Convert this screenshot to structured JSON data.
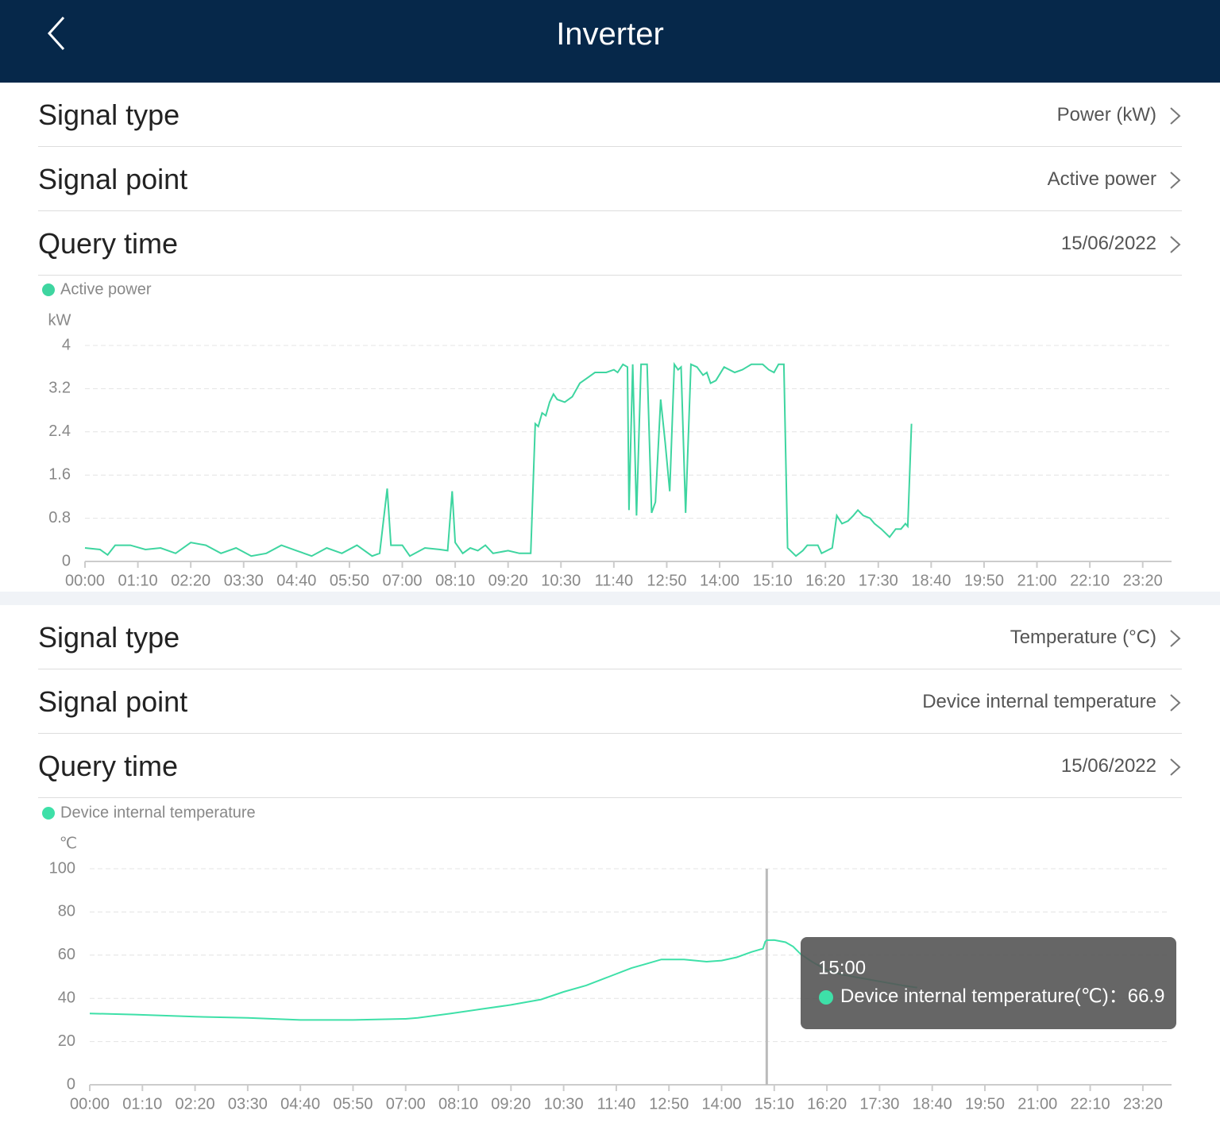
{
  "header": {
    "title": "Inverter"
  },
  "sections": [
    {
      "rows": [
        {
          "label": "Signal type",
          "value": "Power (kW)"
        },
        {
          "label": "Signal point",
          "value": "Active power"
        },
        {
          "label": "Query time",
          "value": "15/06/2022"
        }
      ]
    },
    {
      "rows": [
        {
          "label": "Signal type",
          "value": "Temperature (°C)"
        },
        {
          "label": "Signal point",
          "value": "Device internal temperature"
        },
        {
          "label": "Query time",
          "value": "15/06/2022"
        }
      ]
    }
  ],
  "chart_data": [
    {
      "type": "line",
      "y_label": "kW",
      "x": [
        0,
        20,
        30,
        40,
        60,
        80,
        100,
        120,
        140,
        160,
        180,
        200,
        220,
        240,
        260,
        280,
        300,
        320,
        340,
        360,
        380,
        390,
        400,
        405,
        420,
        430,
        450,
        470,
        480,
        486,
        490,
        500,
        510,
        520,
        530,
        540,
        560,
        575,
        590,
        596,
        600,
        605,
        610,
        615,
        620,
        625,
        635,
        645,
        655,
        665,
        675,
        690,
        700,
        705,
        712,
        718,
        720,
        725,
        730,
        736,
        744,
        750,
        755,
        762,
        768,
        774,
        780,
        785,
        789,
        795,
        802,
        810,
        818,
        823,
        828,
        835,
        846,
        860,
        870,
        876,
        882,
        897,
        905,
        912,
        918,
        925,
        930,
        941,
        950,
        956,
        970,
        975,
        989,
        995,
        1002,
        1010,
        1017,
        1023,
        1030,
        1039,
        1045,
        1054,
        1065,
        1073,
        1080,
        1086,
        1089,
        1094
      ],
      "series": [
        {
          "name": "Active power",
          "color": "#3ed5a0",
          "values": [
            0.25,
            0.22,
            0.12,
            0.3,
            0.3,
            0.22,
            0.25,
            0.15,
            0.35,
            0.3,
            0.15,
            0.25,
            0.1,
            0.15,
            0.3,
            0.2,
            0.1,
            0.25,
            0.15,
            0.3,
            0.1,
            0.15,
            1.35,
            0.3,
            0.3,
            0.1,
            0.25,
            0.22,
            0.2,
            1.3,
            0.35,
            0.15,
            0.25,
            0.2,
            0.3,
            0.15,
            0.2,
            0.15,
            0.15,
            2.55,
            2.5,
            2.75,
            2.7,
            2.95,
            3.1,
            3.0,
            2.95,
            3.05,
            3.3,
            3.4,
            3.5,
            3.5,
            3.55,
            3.5,
            3.65,
            3.6,
            0.95,
            3.65,
            0.85,
            3.65,
            3.65,
            0.9,
            1.1,
            3.0,
            2.2,
            1.3,
            3.65,
            3.55,
            3.6,
            0.9,
            3.65,
            3.6,
            3.45,
            3.5,
            3.3,
            3.35,
            3.6,
            3.5,
            3.55,
            3.6,
            3.65,
            3.65,
            3.55,
            3.5,
            3.65,
            3.65,
            0.25,
            0.1,
            0.2,
            0.3,
            0.3,
            0.15,
            0.25,
            0.85,
            0.7,
            0.75,
            0.85,
            0.95,
            0.85,
            0.8,
            0.7,
            0.6,
            0.45,
            0.6,
            0.6,
            0.7,
            0.65,
            2.55
          ]
        }
      ],
      "xlim": [
        0,
        1435
      ],
      "xticks": [
        {
          "value": 0,
          "label": "00:00"
        },
        {
          "value": 70,
          "label": "01:10"
        },
        {
          "value": 140,
          "label": "02:20"
        },
        {
          "value": 210,
          "label": "03:30"
        },
        {
          "value": 280,
          "label": "04:40"
        },
        {
          "value": 350,
          "label": "05:50"
        },
        {
          "value": 420,
          "label": "07:00"
        },
        {
          "value": 490,
          "label": "08:10"
        },
        {
          "value": 560,
          "label": "09:20"
        },
        {
          "value": 630,
          "label": "10:30"
        },
        {
          "value": 700,
          "label": "11:40"
        },
        {
          "value": 770,
          "label": "12:50"
        },
        {
          "value": 840,
          "label": "14:00"
        },
        {
          "value": 910,
          "label": "15:10"
        },
        {
          "value": 980,
          "label": "16:20"
        },
        {
          "value": 1050,
          "label": "17:30"
        },
        {
          "value": 1120,
          "label": "18:40"
        },
        {
          "value": 1190,
          "label": "19:50"
        },
        {
          "value": 1260,
          "label": "21:00"
        },
        {
          "value": 1330,
          "label": "22:10"
        },
        {
          "value": 1400,
          "label": "23:20"
        }
      ],
      "ylim": [
        0,
        4
      ],
      "yticks": [
        0,
        0.8,
        1.6,
        2.4,
        3.2,
        4
      ],
      "grid": true
    },
    {
      "type": "line",
      "y_label": "℃",
      "x": [
        0,
        60,
        140,
        210,
        280,
        350,
        420,
        436,
        480,
        520,
        560,
        600,
        630,
        660,
        690,
        720,
        740,
        760,
        790,
        820,
        840,
        860,
        880,
        895,
        898,
        900,
        910,
        925,
        935,
        945,
        960,
        980,
        1000,
        1040,
        1080,
        1100
      ],
      "series": [
        {
          "name": "Device internal temperature",
          "color": "#3ee0a8",
          "values": [
            33,
            32.5,
            31.5,
            31,
            30,
            30,
            30.5,
            31,
            33,
            35,
            37,
            39.5,
            43,
            46,
            50,
            54,
            56,
            58,
            58,
            57,
            57.5,
            59,
            61.5,
            63,
            66.2,
            66.9,
            67,
            66,
            64,
            60.5,
            57,
            53,
            51,
            48.5,
            46,
            45
          ]
        }
      ],
      "xlim": [
        0,
        1435
      ],
      "xticks": [
        {
          "value": 0,
          "label": "00:00"
        },
        {
          "value": 70,
          "label": "01:10"
        },
        {
          "value": 140,
          "label": "02:20"
        },
        {
          "value": 210,
          "label": "03:30"
        },
        {
          "value": 280,
          "label": "04:40"
        },
        {
          "value": 350,
          "label": "05:50"
        },
        {
          "value": 420,
          "label": "07:00"
        },
        {
          "value": 490,
          "label": "08:10"
        },
        {
          "value": 560,
          "label": "09:20"
        },
        {
          "value": 630,
          "label": "10:30"
        },
        {
          "value": 700,
          "label": "11:40"
        },
        {
          "value": 770,
          "label": "12:50"
        },
        {
          "value": 840,
          "label": "14:00"
        },
        {
          "value": 910,
          "label": "15:10"
        },
        {
          "value": 980,
          "label": "16:20"
        },
        {
          "value": 1050,
          "label": "17:30"
        },
        {
          "value": 1120,
          "label": "18:40"
        },
        {
          "value": 1190,
          "label": "19:50"
        },
        {
          "value": 1260,
          "label": "21:00"
        },
        {
          "value": 1330,
          "label": "22:10"
        },
        {
          "value": 1400,
          "label": "23:20"
        }
      ],
      "ylim": [
        0,
        100
      ],
      "yticks": [
        0,
        20,
        40,
        60,
        80,
        100
      ],
      "grid": true,
      "tooltip": {
        "title": "15:00",
        "x": 900,
        "label": "Device internal temperature(℃)：",
        "value": 66.9
      }
    }
  ]
}
